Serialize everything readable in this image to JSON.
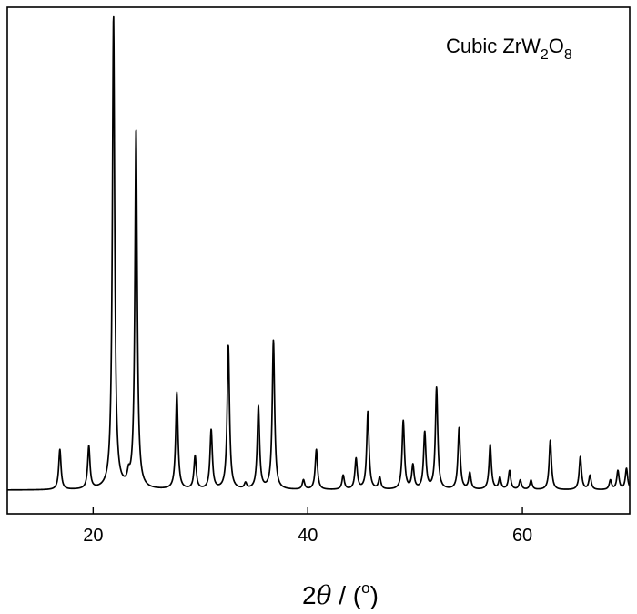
{
  "chart_data": {
    "type": "line",
    "title": "",
    "xlabel": "2θ / (°)",
    "xlabel_parts": {
      "prefix": "2",
      "symbol": "θ",
      "slash": " / (",
      "degree": "o",
      "suffix": ")"
    },
    "ylabel": "",
    "xlim": [
      12,
      70
    ],
    "ylim": [
      -0.05,
      1.02
    ],
    "x_ticks": [
      20,
      40,
      60
    ],
    "x_tick_labels": [
      "20",
      "40",
      "60"
    ],
    "y_ticks_visible": false,
    "grid": false,
    "legend_position": "top-right",
    "legend": {
      "text": "Cubic ZrW",
      "sub1": "2",
      "text2": "O",
      "sub2": "8"
    },
    "series": [
      {
        "name": "Cubic ZrW2O8",
        "color": "#000000",
        "baseline": 0.0,
        "peaks": [
          {
            "x": 16.9,
            "y": 0.085
          },
          {
            "x": 19.6,
            "y": 0.09
          },
          {
            "x": 21.9,
            "y": 1.0
          },
          {
            "x": 23.3,
            "y": 0.02
          },
          {
            "x": 24.0,
            "y": 0.76
          },
          {
            "x": 27.8,
            "y": 0.205
          },
          {
            "x": 29.5,
            "y": 0.07
          },
          {
            "x": 31.0,
            "y": 0.125
          },
          {
            "x": 32.6,
            "y": 0.305
          },
          {
            "x": 34.2,
            "y": 0.012
          },
          {
            "x": 35.4,
            "y": 0.175
          },
          {
            "x": 36.8,
            "y": 0.315
          },
          {
            "x": 39.6,
            "y": 0.02
          },
          {
            "x": 40.8,
            "y": 0.085
          },
          {
            "x": 43.3,
            "y": 0.03
          },
          {
            "x": 44.5,
            "y": 0.065
          },
          {
            "x": 45.6,
            "y": 0.165
          },
          {
            "x": 46.7,
            "y": 0.025
          },
          {
            "x": 48.9,
            "y": 0.145
          },
          {
            "x": 49.8,
            "y": 0.05
          },
          {
            "x": 50.9,
            "y": 0.12
          },
          {
            "x": 52.0,
            "y": 0.215
          },
          {
            "x": 54.1,
            "y": 0.13
          },
          {
            "x": 55.1,
            "y": 0.035
          },
          {
            "x": 57.0,
            "y": 0.095
          },
          {
            "x": 57.9,
            "y": 0.025
          },
          {
            "x": 58.8,
            "y": 0.04
          },
          {
            "x": 59.8,
            "y": 0.02
          },
          {
            "x": 60.8,
            "y": 0.02
          },
          {
            "x": 62.6,
            "y": 0.105
          },
          {
            "x": 65.4,
            "y": 0.07
          },
          {
            "x": 66.3,
            "y": 0.03
          },
          {
            "x": 68.2,
            "y": 0.02
          },
          {
            "x": 68.9,
            "y": 0.04
          },
          {
            "x": 69.7,
            "y": 0.045
          }
        ]
      }
    ]
  }
}
